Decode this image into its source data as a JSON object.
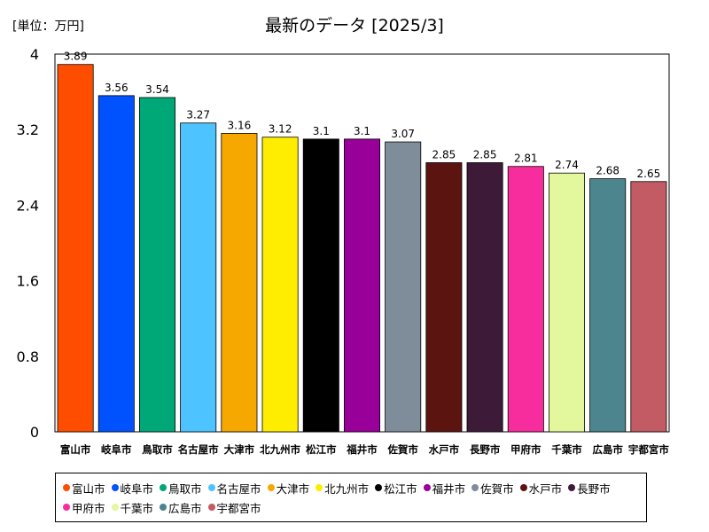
{
  "chart_data": {
    "type": "bar",
    "title": "最新のデータ [2025/3]",
    "unit_label": "[単位：万円]",
    "categories": [
      "富山市",
      "岐阜市",
      "鳥取市",
      "名古屋市",
      "大津市",
      "北九州市",
      "松江市",
      "福井市",
      "佐賀市",
      "水戸市",
      "長野市",
      "甲府市",
      "千葉市",
      "広島市",
      "宇都宮市"
    ],
    "values": [
      3.89,
      3.56,
      3.54,
      3.27,
      3.16,
      3.12,
      3.1,
      3.1,
      3.07,
      2.85,
      2.85,
      2.81,
      2.74,
      2.68,
      2.65
    ],
    "value_labels": [
      "3.89",
      "3.56",
      "3.54",
      "3.27",
      "3.16",
      "3.12",
      "3.1",
      "3.1",
      "3.07",
      "2.85",
      "2.85",
      "2.81",
      "2.74",
      "2.68",
      "2.65"
    ],
    "colors": [
      "#ff4d00",
      "#0052ff",
      "#00a877",
      "#4dc4ff",
      "#f7a800",
      "#ffed00",
      "#000000",
      "#990099",
      "#7f8c99",
      "#5c1410",
      "#3d1a38",
      "#f72d9e",
      "#e3f79c",
      "#4d858f",
      "#c25b63"
    ],
    "yticks": [
      "0",
      "0.8",
      "1.6",
      "2.4",
      "3.2",
      "4"
    ],
    "ylim": [
      0,
      4
    ],
    "legend_position": "bottom",
    "grid": false
  }
}
